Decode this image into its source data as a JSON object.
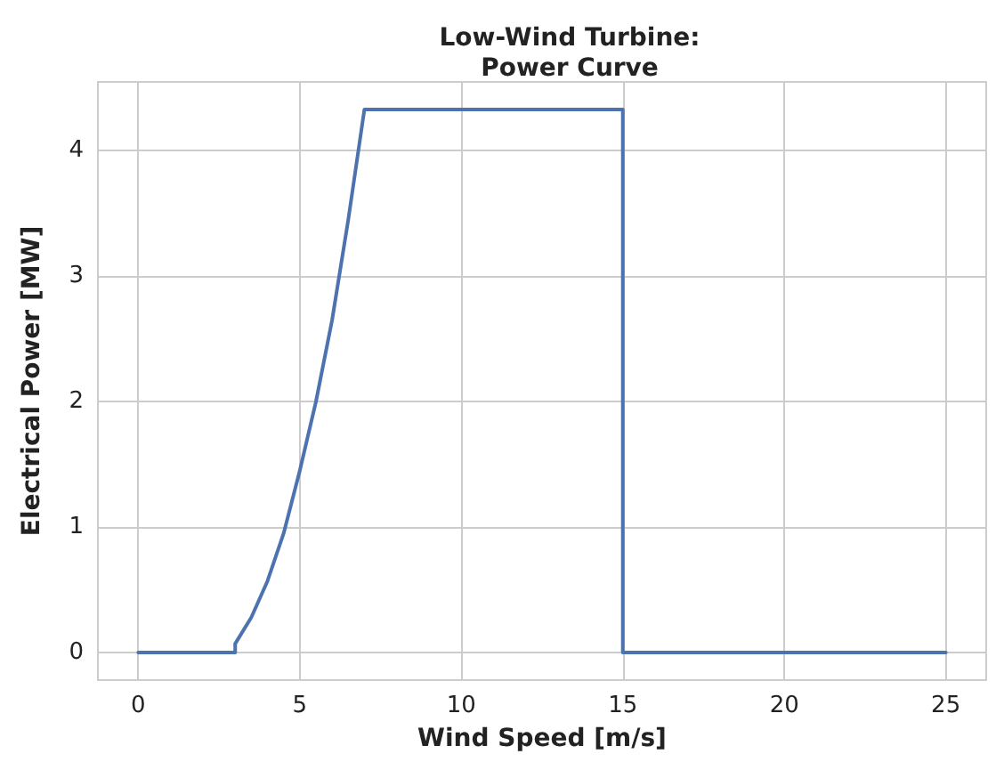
{
  "chart_data": {
    "type": "line",
    "title": "Low-Wind Turbine:\nPower Curve",
    "xlabel": "Wind Speed [m/s]",
    "ylabel": "Electrical Power [MW]",
    "x": [
      0,
      3,
      3,
      3.5,
      4,
      4.5,
      5,
      5.5,
      6,
      6.5,
      7,
      15,
      15,
      25
    ],
    "series": [
      {
        "color": "#4c72b0",
        "values": [
          0,
          0,
          0.07,
          0.28,
          0.57,
          0.95,
          1.45,
          2.0,
          2.65,
          3.45,
          4.33,
          4.33,
          0,
          0
        ]
      }
    ],
    "xlim": [
      -1.25,
      26.25
    ],
    "ylim": [
      -0.22,
      4.55
    ],
    "xticks": [
      0,
      5,
      10,
      15,
      20,
      25
    ],
    "yticks": [
      0,
      1,
      2,
      3,
      4
    ],
    "grid": true,
    "marker": "none",
    "line_style": "solid"
  }
}
